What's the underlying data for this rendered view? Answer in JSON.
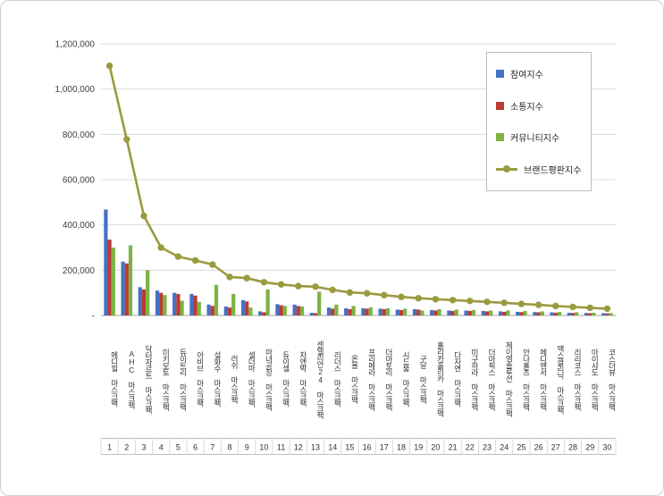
{
  "chart_data": {
    "type": "bar",
    "title": "",
    "xlabel": "",
    "ylabel": "",
    "ylim": [
      0,
      1200000
    ],
    "ytick_step": 200000,
    "ytick_labels": [
      "-",
      "200,000",
      "400,000",
      "600,000",
      "800,000",
      "1,000,000",
      "1,200,000"
    ],
    "grid": true,
    "legend_position": "top-right",
    "categories": [
      "메디힐 마스크팩",
      "AHC 마스크팩",
      "닥터자르트 마스크팩",
      "미키모토 마스크팩",
      "듀이트리 마스크팩",
      "아비브 마스크팩",
      "설화수 마스크팩",
      "러쉬 마스크팩",
      "셀더마 마스크팩",
      "마녀공장 마스크팩",
      "듀이셀 마스크팩",
      "차앤박 마스크팩",
      "센텔리안24 마스크팩",
      "리더스 마스크팩",
      "온율 마스크팩",
      "프리메라 마스크팩",
      "더마토리 마스크팩",
      "시드물 마스크팩",
      "구달 마스크팩",
      "홀리카홀리카 마스크팩",
      "다자연 마스크팩",
      "미구하라 마스크팩",
      "더마픽스 마스크팩",
      "제이엠솔루션 마스크팩",
      "안나홀츠 마스크팩",
      "메디앤서 마스크팩",
      "맥스클리닉 마스크팩",
      "리리코스 마스크팩",
      "아이샤도 마스크팩",
      "코스더뷰 마스크팩"
    ],
    "rank_labels": [
      "1",
      "2",
      "3",
      "4",
      "5",
      "6",
      "7",
      "8",
      "9",
      "10",
      "11",
      "12",
      "13",
      "14",
      "15",
      "16",
      "17",
      "18",
      "19",
      "20",
      "21",
      "22",
      "23",
      "24",
      "25",
      "26",
      "27",
      "28",
      "29",
      "30"
    ],
    "series": [
      {
        "name": "참여지수",
        "type": "bar",
        "color": "#4472C4",
        "values": [
          468000,
          238000,
          125000,
          110000,
          100000,
          95000,
          48000,
          40000,
          68000,
          18000,
          50000,
          48000,
          12000,
          35000,
          32000,
          32000,
          30000,
          26000,
          28000,
          24000,
          22000,
          22000,
          20000,
          18000,
          16000,
          15000,
          14000,
          12000,
          11000,
          10000
        ]
      },
      {
        "name": "소통지수",
        "type": "bar",
        "color": "#BE3A34",
        "values": [
          335000,
          230000,
          115000,
          100000,
          95000,
          88000,
          42000,
          35000,
          62000,
          14000,
          45000,
          42000,
          10000,
          30000,
          28000,
          30000,
          28000,
          24000,
          26000,
          22000,
          20000,
          20000,
          18000,
          16000,
          15000,
          14000,
          12000,
          11000,
          10000,
          9000
        ]
      },
      {
        "name": "커뮤니티지수",
        "type": "bar",
        "color": "#7CB342",
        "values": [
          300000,
          310000,
          200000,
          90000,
          65000,
          60000,
          135000,
          95000,
          35000,
          115000,
          42000,
          40000,
          105000,
          48000,
          42000,
          36000,
          32000,
          30000,
          22000,
          28000,
          26000,
          24000,
          22000,
          22000,
          20000,
          18000,
          16000,
          14000,
          12000,
          11000
        ]
      },
      {
        "name": "브랜드평판지수",
        "type": "line",
        "color": "#9B9A3F",
        "values": [
          1103000,
          778000,
          440000,
          300000,
          260000,
          243000,
          225000,
          170000,
          165000,
          147000,
          137000,
          130000,
          127000,
          113000,
          102000,
          98000,
          90000,
          82000,
          76000,
          72000,
          68000,
          64000,
          60000,
          56000,
          51000,
          47000,
          42000,
          38000,
          34000,
          30000
        ]
      }
    ],
    "axis_colors": {
      "gridline": "#d9d9d9",
      "baseline": "#a6a6a6",
      "tick_text": "#404040",
      "label_text": "#333333"
    }
  }
}
